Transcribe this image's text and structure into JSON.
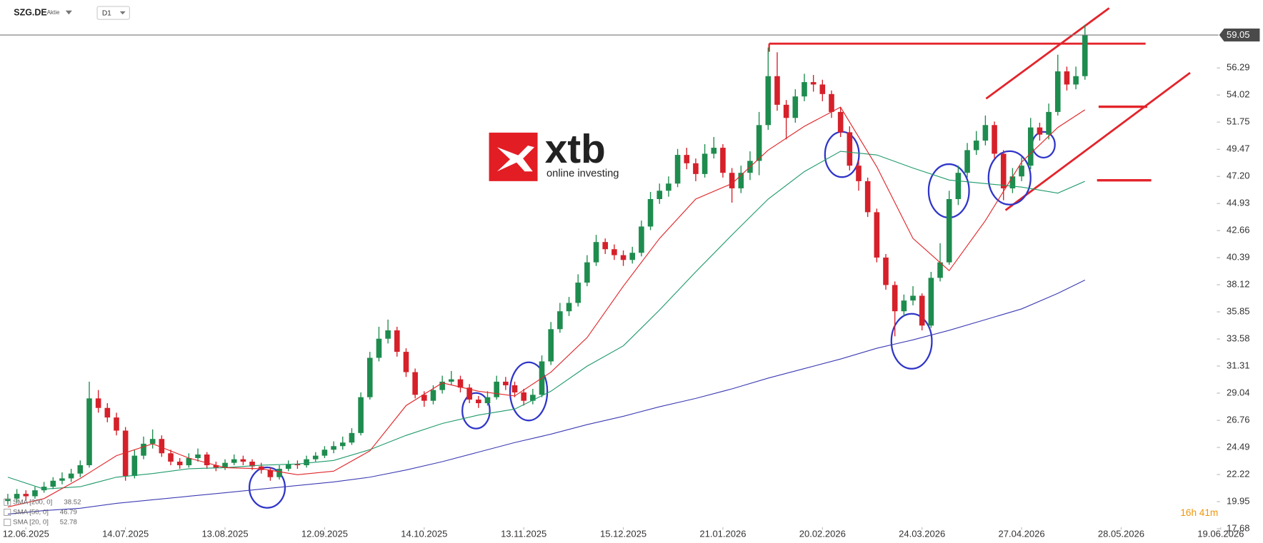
{
  "chart_data": {
    "type": "candlestick",
    "title": "SZG.DE",
    "instrument_type": "Aktie",
    "timeframe": "D1",
    "countdown": "16h 41m",
    "logo": {
      "name": "xtb",
      "tagline": "online investing"
    },
    "up_color": "#1e8c4e",
    "down_color": "#d6202a",
    "open": [
      20.0,
      20.2,
      20.6,
      20.4,
      20.9,
      21.2,
      21.7,
      21.9,
      22.3,
      23.0,
      28.6,
      27.8,
      27.0,
      25.9,
      22.1,
      23.8,
      24.8,
      25.2,
      24.0,
      23.3,
      23.0,
      23.6,
      23.9,
      23.0,
      22.8,
      23.2,
      23.5,
      23.3,
      22.9,
      22.6,
      22.0,
      22.7,
      23.1,
      23.0,
      23.5,
      23.8,
      24.3,
      24.6,
      24.9,
      25.7,
      28.7,
      32.0,
      33.6,
      34.3,
      32.5,
      30.8,
      28.9,
      28.4,
      29.3,
      30.0,
      30.2,
      29.5,
      28.5,
      28.2,
      28.7,
      30.0,
      29.7,
      29.1,
      28.4,
      28.9,
      31.7,
      34.4,
      35.9,
      36.6,
      38.3,
      40.0,
      41.7,
      41.1,
      40.6,
      40.2,
      40.8,
      43.0,
      45.3,
      46.0,
      46.6,
      49.0,
      48.3,
      47.4,
      49.1,
      49.6,
      47.5,
      46.2,
      47.5,
      48.5,
      51.5,
      55.6,
      53.2,
      52.1,
      53.9,
      55.1,
      54.9,
      54.1,
      52.6,
      50.9,
      48.1,
      46.8,
      44.2,
      40.4,
      38.1,
      35.9,
      36.8,
      37.2,
      34.7,
      38.7,
      40.0,
      45.3,
      47.5,
      49.4,
      50.2,
      51.5,
      49.1,
      46.2,
      47.2,
      48.1,
      51.3,
      50.7,
      52.6,
      56.0,
      54.9,
      55.6
    ],
    "high": [
      20.6,
      21.0,
      20.9,
      21.2,
      21.6,
      22.0,
      22.4,
      22.7,
      23.4,
      30.0,
      29.3,
      28.2,
      27.4,
      26.2,
      24.3,
      25.4,
      26.0,
      25.5,
      24.3,
      23.6,
      24.0,
      24.4,
      24.1,
      23.3,
      23.5,
      23.9,
      23.8,
      23.5,
      23.2,
      22.8,
      23.0,
      23.4,
      23.4,
      23.8,
      24.1,
      24.6,
      25.0,
      25.4,
      26.1,
      29.1,
      32.5,
      34.6,
      35.2,
      34.6,
      32.8,
      31.1,
      29.2,
      29.7,
      30.5,
      30.9,
      30.5,
      29.8,
      28.8,
      29.2,
      30.5,
      30.4,
      30.0,
      29.4,
      29.4,
      32.2,
      35.0,
      36.6,
      37.1,
      39.0,
      40.6,
      42.3,
      42.0,
      41.5,
      41.0,
      41.3,
      43.5,
      45.9,
      46.6,
      47.2,
      49.5,
      49.6,
      48.7,
      49.9,
      50.5,
      49.9,
      47.9,
      48.1,
      49.3,
      52.6,
      58.0,
      57.6,
      53.6,
      54.5,
      55.8,
      55.7,
      55.3,
      54.4,
      53.0,
      51.4,
      48.5,
      47.1,
      44.5,
      40.7,
      38.4,
      37.3,
      38.0,
      37.4,
      39.2,
      41.6,
      46.0,
      48.1,
      50.0,
      51.0,
      52.3,
      51.8,
      49.4,
      47.9,
      48.8,
      52.1,
      51.7,
      53.3,
      57.4,
      56.4,
      56.4,
      59.9
    ],
    "low": [
      19.7,
      19.9,
      20.1,
      20.2,
      20.7,
      21.0,
      21.4,
      21.6,
      22.0,
      22.8,
      27.4,
      26.6,
      25.5,
      21.7,
      21.9,
      23.5,
      24.4,
      23.7,
      23.0,
      22.7,
      22.8,
      23.3,
      22.7,
      22.5,
      22.6,
      23.0,
      23.0,
      22.6,
      22.3,
      21.7,
      21.8,
      22.5,
      22.7,
      22.8,
      23.3,
      23.6,
      24.0,
      24.3,
      24.7,
      25.5,
      28.5,
      31.7,
      33.2,
      32.1,
      30.4,
      28.6,
      27.9,
      28.1,
      29.0,
      29.7,
      29.1,
      28.2,
      27.8,
      28.0,
      28.5,
      29.3,
      28.7,
      28.0,
      28.1,
      28.7,
      31.4,
      34.1,
      35.5,
      36.3,
      38.0,
      39.7,
      40.7,
      40.2,
      39.7,
      39.9,
      40.5,
      42.7,
      44.9,
      45.5,
      46.3,
      47.8,
      46.8,
      47.1,
      48.7,
      47.1,
      45.0,
      45.8,
      46.9,
      47.3,
      51.1,
      52.7,
      50.3,
      51.7,
      53.5,
      54.3,
      53.5,
      52.1,
      50.5,
      47.7,
      46.0,
      43.8,
      40.0,
      37.7,
      33.8,
      35.5,
      36.4,
      34.3,
      34.5,
      38.4,
      39.8,
      44.8,
      47.1,
      49.0,
      49.8,
      48.7,
      45.2,
      45.8,
      46.8,
      47.8,
      50.2,
      50.3,
      52.3,
      54.4,
      54.5,
      55.3
    ],
    "close": [
      20.2,
      20.6,
      20.4,
      20.9,
      21.2,
      21.7,
      21.9,
      22.3,
      23.0,
      28.6,
      27.8,
      27.0,
      25.9,
      22.1,
      23.8,
      24.8,
      25.2,
      24.0,
      23.3,
      23.0,
      23.6,
      23.9,
      23.0,
      22.8,
      23.2,
      23.5,
      23.3,
      22.9,
      22.6,
      22.0,
      22.7,
      23.1,
      23.0,
      23.5,
      23.8,
      24.3,
      24.6,
      24.9,
      25.7,
      28.7,
      32.0,
      33.6,
      34.3,
      32.5,
      30.8,
      28.9,
      28.4,
      29.3,
      30.0,
      30.2,
      29.5,
      28.5,
      28.2,
      28.7,
      30.0,
      29.7,
      29.1,
      28.4,
      28.9,
      31.7,
      34.4,
      35.9,
      36.6,
      38.3,
      40.0,
      41.7,
      41.1,
      40.6,
      40.2,
      40.8,
      43.0,
      45.3,
      46.0,
      46.6,
      49.0,
      48.3,
      47.4,
      49.1,
      49.6,
      47.5,
      46.2,
      47.5,
      48.5,
      51.5,
      55.6,
      53.2,
      52.1,
      53.9,
      55.1,
      54.9,
      54.1,
      52.6,
      50.9,
      48.1,
      46.8,
      44.2,
      40.4,
      38.1,
      35.9,
      36.8,
      37.2,
      34.7,
      38.7,
      40.0,
      45.3,
      47.5,
      49.4,
      50.2,
      51.5,
      49.1,
      46.2,
      47.2,
      48.1,
      51.3,
      50.7,
      52.6,
      56.0,
      54.9,
      55.6,
      59.05
    ],
    "series": [
      {
        "name": "SMA [200, 0]",
        "type": "line",
        "color": "#3c3cb4",
        "x": [
          0,
          4,
          8,
          12,
          16,
          20,
          24,
          28,
          32,
          36,
          40,
          44,
          48,
          52,
          56,
          60,
          64,
          68,
          72,
          76,
          80,
          84,
          88,
          92,
          96,
          100,
          104,
          108,
          112,
          116,
          119
        ],
        "values": [
          18.9,
          19.2,
          19.4,
          19.8,
          20.1,
          20.4,
          20.7,
          21.0,
          21.3,
          21.6,
          22.0,
          22.6,
          23.3,
          24.1,
          24.9,
          25.6,
          26.4,
          27.1,
          27.9,
          28.6,
          29.4,
          30.3,
          31.1,
          31.9,
          32.8,
          33.5,
          34.3,
          35.2,
          36.1,
          37.4,
          38.52
        ]
      },
      {
        "name": "SMA [50, 0]",
        "type": "line",
        "color": "#1f9a6a",
        "x": [
          0,
          4,
          8,
          12,
          16,
          20,
          24,
          28,
          32,
          36,
          40,
          44,
          48,
          52,
          56,
          60,
          64,
          68,
          72,
          76,
          80,
          84,
          88,
          92,
          96,
          100,
          104,
          108,
          112,
          116,
          119
        ],
        "values": [
          22.0,
          21.0,
          21.2,
          22.0,
          22.3,
          22.7,
          22.8,
          23.0,
          23.1,
          23.4,
          24.3,
          25.5,
          26.5,
          27.2,
          27.7,
          29.2,
          31.3,
          33.0,
          36.0,
          39.2,
          42.3,
          45.3,
          47.6,
          49.3,
          49.0,
          47.9,
          46.9,
          46.6,
          46.3,
          45.8,
          46.79
        ]
      },
      {
        "name": "SMA [20, 0]",
        "type": "line",
        "color": "#e0262a",
        "x": [
          0,
          4,
          8,
          12,
          16,
          20,
          24,
          28,
          32,
          36,
          40,
          44,
          48,
          52,
          56,
          60,
          64,
          68,
          72,
          76,
          80,
          84,
          88,
          92,
          96,
          100,
          104,
          108,
          112,
          116,
          119
        ],
        "values": [
          19.5,
          20.2,
          21.9,
          23.8,
          24.8,
          23.6,
          22.8,
          22.7,
          22.2,
          22.5,
          24.2,
          28.0,
          29.9,
          29.2,
          28.8,
          30.8,
          33.7,
          38.0,
          42.0,
          45.3,
          46.6,
          49.4,
          51.4,
          53.0,
          48.0,
          42.0,
          39.3,
          43.5,
          48.4,
          51.3,
          52.78
        ]
      }
    ],
    "xlim": [
      -0.86,
      133.3
    ],
    "ylim": [
      17.94,
      61.98
    ],
    "xticks": [
      {
        "value": 2,
        "label": "12.06.2025"
      },
      {
        "value": 13,
        "label": "14.07.2025"
      },
      {
        "value": 24,
        "label": "13.08.2025"
      },
      {
        "value": 35,
        "label": "12.09.2025"
      },
      {
        "value": 46,
        "label": "14.10.2025"
      },
      {
        "value": 57,
        "label": "13.11.2025"
      },
      {
        "value": 68,
        "label": "15.12.2025"
      },
      {
        "value": 79,
        "label": "21.01.2026"
      },
      {
        "value": 90,
        "label": "20.02.2026"
      },
      {
        "value": 101,
        "label": "24.03.2026"
      },
      {
        "value": 112,
        "label": "27.04.2026"
      },
      {
        "value": 123,
        "label": "28.05.2026"
      },
      {
        "value": 134,
        "label": "19.06.2026"
      }
    ],
    "yticks": [
      17.68,
      19.95,
      22.22,
      24.49,
      26.76,
      29.04,
      31.31,
      33.58,
      35.85,
      38.12,
      40.39,
      42.66,
      44.93,
      {
        "value": 47.2,
        "label": "47.20"
      },
      49.47,
      51.75,
      54.02,
      56.29
    ],
    "grid": false
  }
}
